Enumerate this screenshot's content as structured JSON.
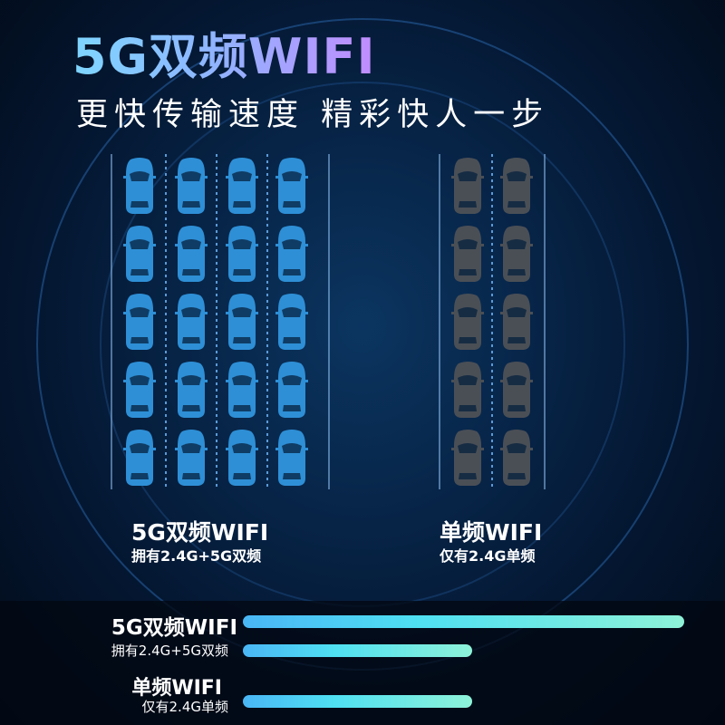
{
  "header": {
    "title": "5G双频WIFI",
    "subtitle": "更快传输速度 精彩快人一步"
  },
  "comparison": {
    "dual": {
      "title": "5G双频WIFI",
      "desc": "拥有2.4G+5G双频",
      "car_columns": 4,
      "car_rows": 5,
      "car_color": "#2e8fd6"
    },
    "single": {
      "title": "单频WIFI",
      "desc": "仅有2.4G单频",
      "car_columns": 2,
      "car_rows": 5,
      "car_color": "#4a4f56"
    }
  },
  "speed_bars": [
    {
      "label": "5G双频WIFI",
      "value": 100
    },
    {
      "label": "拥有2.4G+5G双频",
      "value": 52
    },
    {
      "label": "单频WIFI",
      "sublabel": "仅有2.4G单频",
      "value": 52
    }
  ],
  "colors": {
    "bar_start": "#4ab6f5",
    "bar_end": "#8ef2d8",
    "title_start": "#7ed6ff",
    "title_end": "#c18cff"
  }
}
